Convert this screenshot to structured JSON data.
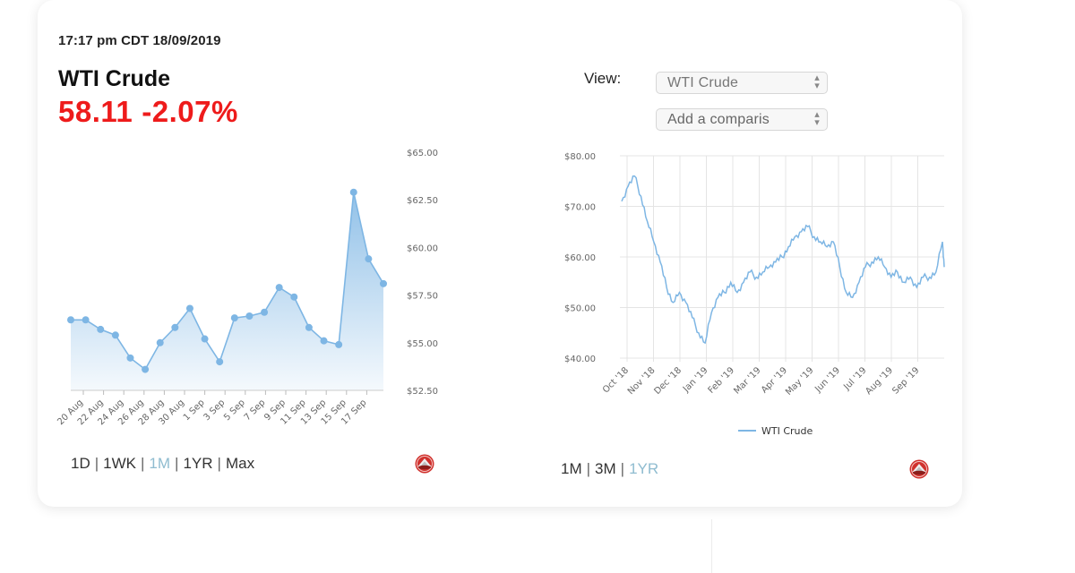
{
  "timestamp": "17:17 pm CDT 18/09/2019",
  "instrument": "WTI Crude",
  "quote": {
    "price": "58.11",
    "change": "-2.07%",
    "color": "#ee1b1b"
  },
  "left_range_options": [
    {
      "label": "1D",
      "active": false
    },
    {
      "label": "1WK",
      "active": false
    },
    {
      "label": "1M",
      "active": true
    },
    {
      "label": "1YR",
      "active": false
    },
    {
      "label": "Max",
      "active": false
    }
  ],
  "right_range_options": [
    {
      "label": "1M",
      "active": false
    },
    {
      "label": "3M",
      "active": false
    },
    {
      "label": "1YR",
      "active": true
    }
  ],
  "view": {
    "label": "View:",
    "instrument_select": "WTI Crude",
    "comparison_select": "Add a comparis"
  },
  "logo_icon": "red-globe-logo-icon",
  "colors": {
    "accent_line": "#7eb6e4",
    "active_range": "#8fbcd0",
    "negative": "#ee1b1b"
  },
  "chart_data": [
    {
      "type": "area",
      "title": "",
      "xlabel": "",
      "ylabel": "",
      "ylim": [
        52.5,
        65
      ],
      "y_ticks": [
        "$65.00",
        "$62.50",
        "$60.00",
        "$57.50",
        "$55.00",
        "$52.50"
      ],
      "x_tick_labels": [
        "20 Aug",
        "22 Aug",
        "24 Aug",
        "26 Aug",
        "28 Aug",
        "30 Aug",
        "1 Sep",
        "3 Sep",
        "5 Sep",
        "7 Sep",
        "9 Sep",
        "11 Sep",
        "13 Sep",
        "15 Sep",
        "17 Sep"
      ],
      "x": [
        "19 Aug",
        "20 Aug",
        "21 Aug",
        "22 Aug",
        "23 Aug",
        "26 Aug",
        "27 Aug",
        "28 Aug",
        "29 Aug",
        "2 Sep",
        "3 Sep",
        "4 Sep",
        "5 Sep",
        "6 Sep",
        "9 Sep",
        "10 Sep",
        "11 Sep",
        "12 Sep",
        "13 Sep",
        "16 Sep",
        "17 Sep",
        "18 Sep"
      ],
      "values": [
        56.2,
        56.2,
        55.7,
        55.4,
        54.2,
        53.6,
        55.0,
        55.8,
        56.8,
        55.2,
        54.0,
        56.3,
        56.4,
        56.6,
        57.9,
        57.4,
        55.8,
        55.1,
        54.9,
        62.9,
        59.4,
        58.1
      ],
      "grid": false,
      "legend": "none"
    },
    {
      "type": "line",
      "title": "",
      "xlabel": "",
      "ylabel": "",
      "ylim": [
        40,
        80
      ],
      "y_ticks": [
        "$80.00",
        "$70.00",
        "$60.00",
        "$50.00",
        "$40.00"
      ],
      "x_tick_labels": [
        "Oct '18",
        "Nov '18",
        "Dec '18",
        "Jan '19",
        "Feb '19",
        "Mar '19",
        "Apr '19",
        "May '19",
        "Jun '19",
        "Jul '19",
        "Aug '19",
        "Sep '19"
      ],
      "series": [
        {
          "name": "WTI Crude",
          "x": [
            "2018-10-01",
            "2018-10-08",
            "2018-10-15",
            "2018-10-22",
            "2018-10-29",
            "2018-11-05",
            "2018-11-12",
            "2018-11-19",
            "2018-11-26",
            "2018-12-03",
            "2018-12-10",
            "2018-12-17",
            "2018-12-24",
            "2018-12-31",
            "2019-01-07",
            "2019-01-14",
            "2019-01-21",
            "2019-01-28",
            "2019-02-04",
            "2019-02-11",
            "2019-02-18",
            "2019-02-25",
            "2019-03-04",
            "2019-03-11",
            "2019-03-18",
            "2019-03-25",
            "2019-04-01",
            "2019-04-08",
            "2019-04-15",
            "2019-04-22",
            "2019-04-29",
            "2019-05-06",
            "2019-05-13",
            "2019-05-20",
            "2019-05-27",
            "2019-06-03",
            "2019-06-10",
            "2019-06-17",
            "2019-06-24",
            "2019-07-01",
            "2019-07-08",
            "2019-07-15",
            "2019-07-22",
            "2019-07-29",
            "2019-08-05",
            "2019-08-12",
            "2019-08-19",
            "2019-08-26",
            "2019-09-02",
            "2019-09-09",
            "2019-09-16",
            "2019-09-18"
          ],
          "values": [
            71,
            74,
            76,
            72,
            67,
            63,
            59,
            54,
            51,
            53,
            51,
            48,
            45,
            43,
            49,
            52,
            53,
            55,
            53,
            55,
            57,
            56,
            57,
            58,
            59,
            60,
            62,
            64,
            65,
            66,
            64,
            63,
            62,
            63,
            58,
            53,
            52,
            55,
            58,
            59,
            60,
            58,
            56,
            57,
            55,
            56,
            54,
            56,
            56,
            57,
            63,
            58
          ]
        }
      ],
      "grid": true,
      "legend": "bottom"
    }
  ]
}
